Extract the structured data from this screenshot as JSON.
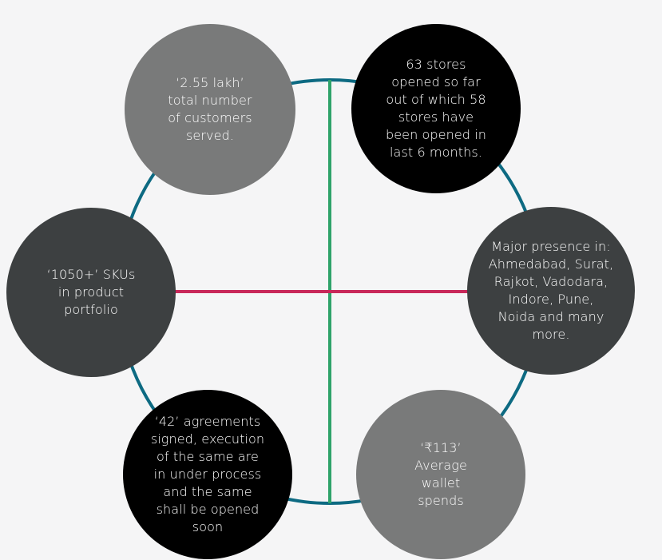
{
  "colors": {
    "ring": "#0d6a82",
    "vertical_line": "#2fa36a",
    "horizontal_line": "#c8285a",
    "dark": "#3d4041",
    "black": "#000000",
    "gray": "#797a7a",
    "text": "#ffffff"
  },
  "nodes": {
    "customers": {
      "text": "‘2.55 lakh’\ntotal number\nof customers\nserved."
    },
    "stores": {
      "text": "63 stores\nopened so far\nout of which 58\nstores have\nbeen opened in\nlast 6 months."
    },
    "presence": {
      "text": "Major presence in:\nAhmedabad, Surat,\nRajkot, Vadodara,\nIndore, Pune,\nNoida and many\nmore."
    },
    "skus": {
      "text": "‘1050+’ SKUs\nin product\nportfolio"
    },
    "agreements": {
      "text": "‘42’ agreements\nsigned, execution\nof the same are\nin  under process\nand  the same\nshall be  opened\nsoon"
    },
    "wallet": {
      "text": "‘₹113’\nAverage\nwallet\nspends"
    }
  }
}
